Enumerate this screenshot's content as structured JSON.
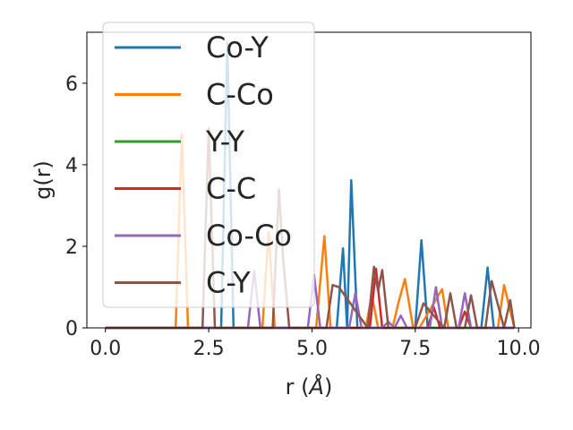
{
  "chart_data": {
    "type": "line",
    "xlabel": "r (",
    "xlabel_unit": "Å",
    "xlabel_close": ")",
    "ylabel": "g(r)",
    "xlim": [
      -0.45,
      10.3
    ],
    "ylim": [
      0,
      7.25
    ],
    "xticks": [
      0.0,
      2.5,
      5.0,
      7.5,
      10.0
    ],
    "xtick_labels": [
      "0.0",
      "2.5",
      "5.0",
      "7.5",
      "10.0"
    ],
    "yticks": [
      0,
      2,
      4,
      6
    ],
    "ytick_labels": [
      "0",
      "2",
      "4",
      "6"
    ],
    "grid": false,
    "legend_position": "top-left",
    "series": [
      {
        "name": "Co-Y",
        "color": "#1f77b4",
        "x": [
          0,
          2.8,
          2.95,
          3.1,
          3.3,
          5.6,
          5.75,
          5.85,
          5.95,
          6.1,
          7.5,
          7.65,
          7.8,
          9.1,
          9.25,
          9.4,
          9.9
        ],
        "y": [
          0,
          0,
          7.0,
          0,
          0,
          0,
          1.95,
          0,
          3.62,
          0,
          0,
          2.15,
          0,
          0,
          1.48,
          0,
          0
        ]
      },
      {
        "name": "C-Co",
        "color": "#ff7f0e",
        "x": [
          0,
          1.7,
          1.85,
          2.0,
          3.8,
          3.95,
          4.1,
          5.1,
          5.3,
          5.45,
          6.3,
          6.45,
          6.6,
          6.95,
          7.1,
          7.25,
          7.45,
          7.6,
          8.15,
          8.3,
          8.5,
          9.5,
          9.65,
          9.9
        ],
        "y": [
          0,
          0,
          4.75,
          0,
          0,
          2.35,
          0,
          0,
          2.25,
          0,
          0,
          0.8,
          0,
          0,
          0.65,
          1.2,
          0,
          0,
          0.95,
          0,
          0,
          0,
          1.05,
          0
        ]
      },
      {
        "name": "Y-Y",
        "color": "#2ca02c",
        "x": [
          0,
          9.9
        ],
        "y": [
          0,
          0
        ]
      },
      {
        "name": "C-C",
        "color": "#d62728",
        "x": [
          0,
          6.4,
          6.55,
          6.7,
          7.8,
          7.95,
          8.1,
          8.55,
          8.7,
          8.85,
          9.9
        ],
        "y": [
          0,
          0,
          1.45,
          0,
          0,
          0.5,
          0,
          0,
          0.4,
          0,
          0
        ]
      },
      {
        "name": "Co-Co",
        "color": "#9467bd",
        "x": [
          0,
          3.45,
          3.6,
          3.75,
          4.9,
          5.05,
          5.2,
          5.9,
          6.05,
          6.2,
          6.7,
          6.85,
          7.0,
          7.15,
          7.3,
          7.85,
          8.0,
          8.15,
          8.55,
          8.7,
          8.85,
          9.9
        ],
        "y": [
          0,
          0,
          1.4,
          0,
          0,
          1.3,
          0,
          0,
          0.85,
          0,
          0,
          0.15,
          0,
          0.3,
          0,
          0,
          1.0,
          0,
          0,
          0.85,
          0,
          0
        ]
      },
      {
        "name": "C-Y",
        "color": "#8c564b",
        "x": [
          0,
          2.35,
          2.5,
          2.65,
          4.05,
          4.2,
          4.3,
          4.45,
          5.35,
          5.5,
          5.65,
          6.35,
          6.5,
          6.6,
          6.7,
          6.85,
          7.5,
          7.7,
          8.2,
          8.35,
          8.5,
          8.7,
          8.85,
          9.0,
          9.2,
          9.35,
          9.65,
          9.8,
          9.9
        ],
        "y": [
          0,
          0,
          4.9,
          0,
          0,
          3.4,
          1.7,
          0,
          0,
          1.05,
          1.0,
          0,
          1.5,
          0.9,
          1.42,
          0,
          0,
          0.6,
          0,
          0.85,
          0,
          0,
          0.8,
          0,
          0,
          1.15,
          0,
          0.68,
          0
        ]
      }
    ]
  }
}
